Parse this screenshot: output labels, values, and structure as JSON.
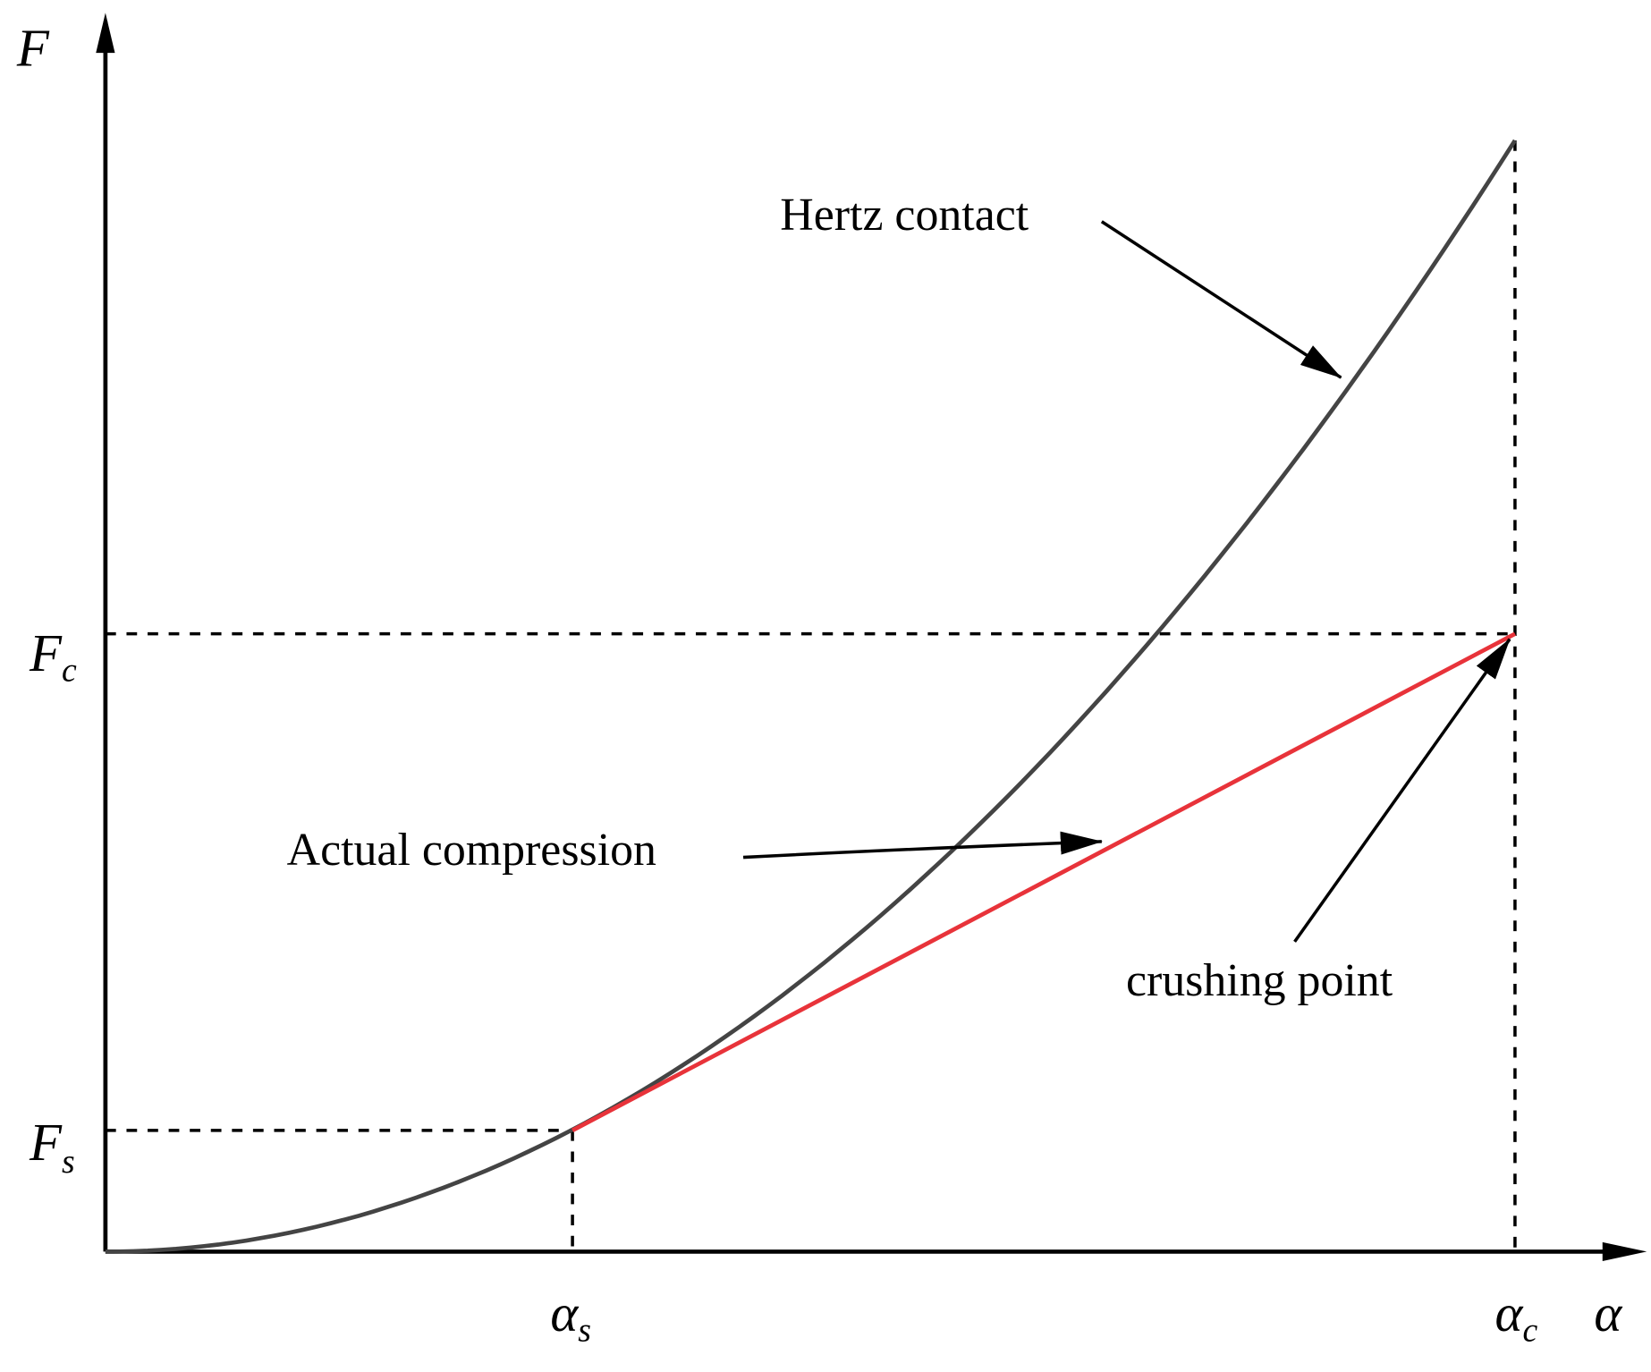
{
  "axes": {
    "y_label": "F",
    "x_label": "α"
  },
  "y_ticks": [
    {
      "symbol": "F",
      "subscript": "c"
    },
    {
      "symbol": "F",
      "subscript": "s"
    }
  ],
  "x_ticks": [
    {
      "symbol": "α",
      "subscript": "s"
    },
    {
      "symbol": "α",
      "subscript": "c"
    }
  ],
  "annotations": {
    "hertz": "Hertz contact",
    "actual": "Actual compression",
    "crushing": "crushing point"
  }
}
